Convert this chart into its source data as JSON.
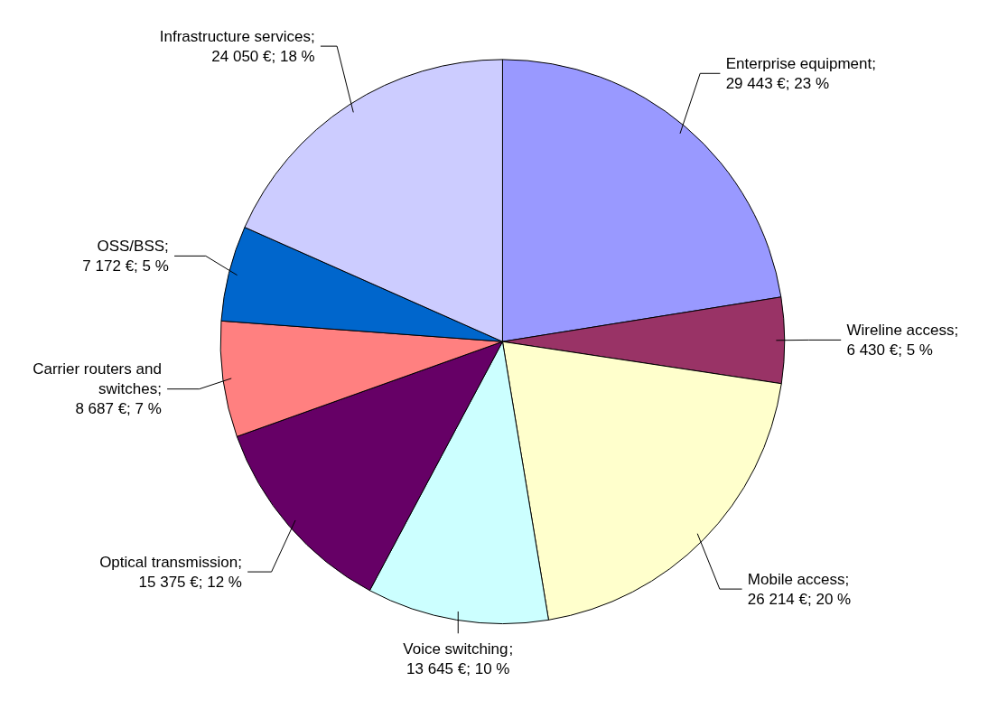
{
  "chart_data": {
    "type": "pie",
    "categories": [
      "Enterprise equipment",
      "Wireline access",
      "Mobile access",
      "Voice switching",
      "Optical transmission",
      "Carrier routers and switches",
      "OSS/BSS",
      "Infrastructure services"
    ],
    "values": [
      29443,
      6430,
      26214,
      13645,
      15375,
      8687,
      7172,
      24050
    ],
    "colors": [
      "#9999ff",
      "#993366",
      "#ffffcc",
      "#ccffff",
      "#660066",
      "#ff8080",
      "#0066cc",
      "#ccccff"
    ],
    "value_labels": [
      "; 29 443 €; 23 %",
      "; 6 430 €; 5 %",
      "; 26 214 €; 20 %",
      "; 13 645 €; 10 %",
      "; 15 375 €; 12 %",
      "; 8 687 €; 7 %",
      "; 7 172 €; 5 %",
      "; 24 050 €; 18 %"
    ]
  }
}
